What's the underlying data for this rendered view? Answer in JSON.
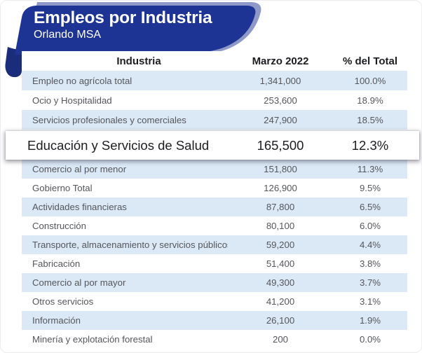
{
  "chart_data": {
    "type": "table",
    "title": "Empleos por Industria",
    "subtitle": "Orlando MSA",
    "columns": [
      "Industria",
      "Marzo 2022",
      "% del Total"
    ],
    "highlight_index": 3,
    "rows": [
      {
        "label": "Empleo no agrícola total",
        "value": "1,341,000",
        "pct": "100.0%"
      },
      {
        "label": "Ocio y Hospitalidad",
        "value": "253,600",
        "pct": "18.9%"
      },
      {
        "label": "Servicios profesionales y comerciales",
        "value": "247,900",
        "pct": "18.5%"
      },
      {
        "label": "Educación y Servicios de Salud",
        "value": "165,500",
        "pct": "12.3%"
      },
      {
        "label": "Comercio al por menor",
        "value": "151,800",
        "pct": "11.3%"
      },
      {
        "label": "Gobierno Total",
        "value": "126,900",
        "pct": "9.5%"
      },
      {
        "label": "Actividades financieras",
        "value": "87,800",
        "pct": "6.5%"
      },
      {
        "label": "Construcción",
        "value": "80,100",
        "pct": "6.0%"
      },
      {
        "label": "Transporte, almacenamiento y servicios públicos",
        "value": "59,200",
        "pct": "4.4%"
      },
      {
        "label": "Fabricación",
        "value": "51,400",
        "pct": "3.8%"
      },
      {
        "label": "Comercio al por mayor",
        "value": "49,300",
        "pct": "3.7%"
      },
      {
        "label": "Otros servicios",
        "value": "41,200",
        "pct": "3.1%"
      },
      {
        "label": "Información",
        "value": "26,100",
        "pct": "1.9%"
      },
      {
        "label": "Minería y explotación forestal",
        "value": "200",
        "pct": "0.0%"
      }
    ],
    "colors": {
      "banner_blue": "#1e3494",
      "banner_light": "#8e99ca",
      "banner_fold": "#1b2c7a",
      "row_stripe": "#dbe9f6",
      "row_text": "#54565b",
      "heading_text": "#1c1d21"
    }
  }
}
